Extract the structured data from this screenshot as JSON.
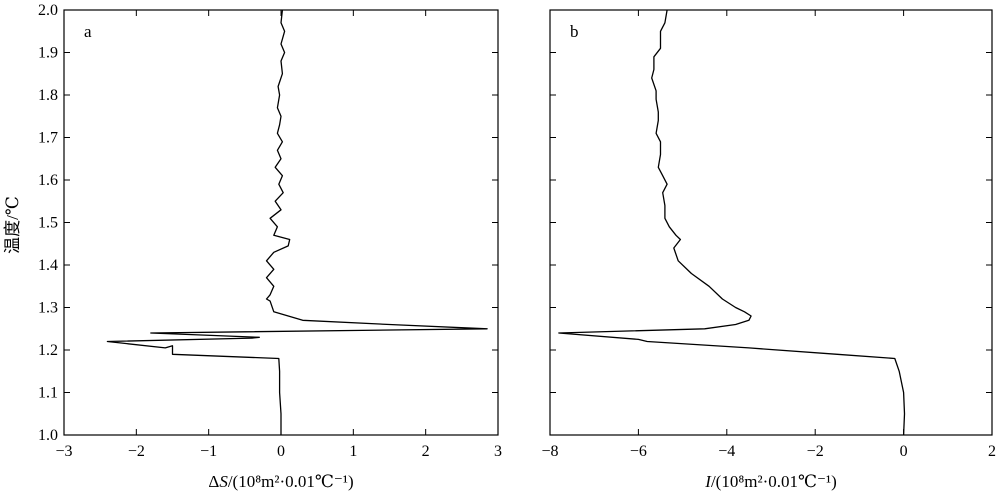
{
  "y_axis_label": "温度/℃",
  "chart_data": [
    {
      "type": "line",
      "panel_label": "a",
      "xlabel_prefix": "Δ",
      "xlabel_var": "S",
      "xlabel_unit": "/(10⁸m²·0.01℃⁻¹)",
      "xlim": [
        -3,
        3
      ],
      "ylim": [
        1.0,
        2.0
      ],
      "xticks": [
        "−3",
        "−2",
        "−1",
        "0",
        "1",
        "2",
        "3"
      ],
      "xtick_values": [
        -3,
        -2,
        -1,
        0,
        1,
        2,
        3
      ],
      "yticks": [
        "1.0",
        "1.1",
        "1.2",
        "1.3",
        "1.4",
        "1.5",
        "1.6",
        "1.7",
        "1.8",
        "1.9",
        "2.0"
      ],
      "ytick_values": [
        1.0,
        1.1,
        1.2,
        1.3,
        1.4,
        1.5,
        1.6,
        1.7,
        1.8,
        1.9,
        2.0
      ],
      "grid": false,
      "series": [
        {
          "points": [
            [
              0.0,
              1.0
            ],
            [
              0.0,
              1.05
            ],
            [
              -0.02,
              1.1
            ],
            [
              -0.02,
              1.15
            ],
            [
              -0.03,
              1.18
            ],
            [
              -1.5,
              1.19
            ],
            [
              -1.5,
              1.21
            ],
            [
              -1.6,
              1.205
            ],
            [
              -2.4,
              1.22
            ],
            [
              -0.4,
              1.228
            ],
            [
              -0.3,
              1.23
            ],
            [
              -1.8,
              1.24
            ],
            [
              2.85,
              1.25
            ],
            [
              1.5,
              1.26
            ],
            [
              0.3,
              1.27
            ],
            [
              -0.1,
              1.29
            ],
            [
              -0.15,
              1.315
            ],
            [
              -0.2,
              1.32
            ],
            [
              -0.15,
              1.33
            ],
            [
              -0.1,
              1.35
            ],
            [
              -0.2,
              1.37
            ],
            [
              -0.1,
              1.39
            ],
            [
              -0.2,
              1.41
            ],
            [
              -0.1,
              1.43
            ],
            [
              0.1,
              1.445
            ],
            [
              0.12,
              1.46
            ],
            [
              -0.1,
              1.47
            ],
            [
              -0.05,
              1.49
            ],
            [
              -0.15,
              1.51
            ],
            [
              0.0,
              1.53
            ],
            [
              -0.08,
              1.55
            ],
            [
              0.03,
              1.57
            ],
            [
              -0.03,
              1.59
            ],
            [
              0.02,
              1.61
            ],
            [
              -0.08,
              1.63
            ],
            [
              0.0,
              1.65
            ],
            [
              -0.05,
              1.67
            ],
            [
              0.02,
              1.69
            ],
            [
              -0.05,
              1.71
            ],
            [
              -0.02,
              1.73
            ],
            [
              0.0,
              1.75
            ],
            [
              -0.05,
              1.77
            ],
            [
              -0.02,
              1.8
            ],
            [
              -0.04,
              1.82
            ],
            [
              0.02,
              1.85
            ],
            [
              0.0,
              1.88
            ],
            [
              0.05,
              1.9
            ],
            [
              0.0,
              1.92
            ],
            [
              0.05,
              1.95
            ],
            [
              0.0,
              1.97
            ],
            [
              0.02,
              2.0
            ]
          ]
        }
      ]
    },
    {
      "type": "line",
      "panel_label": "b",
      "xlabel_prefix": "",
      "xlabel_var": "I",
      "xlabel_unit": "/(10⁸m²·0.01℃⁻¹)",
      "xlim": [
        -8,
        2
      ],
      "ylim": [
        1.0,
        2.0
      ],
      "xticks": [
        "−8",
        "−6",
        "−4",
        "−2",
        "0",
        "2"
      ],
      "xtick_values": [
        -8,
        -6,
        -4,
        -2,
        0,
        2
      ],
      "yticks": [],
      "ytick_values": [
        1.0,
        1.1,
        1.2,
        1.3,
        1.4,
        1.5,
        1.6,
        1.7,
        1.8,
        1.9,
        2.0
      ],
      "grid": false,
      "series": [
        {
          "points": [
            [
              0.0,
              1.0
            ],
            [
              0.02,
              1.05
            ],
            [
              0.0,
              1.1
            ],
            [
              -0.1,
              1.15
            ],
            [
              -0.2,
              1.18
            ],
            [
              -1.5,
              1.19
            ],
            [
              -3.5,
              1.205
            ],
            [
              -5.8,
              1.22
            ],
            [
              -6.0,
              1.225
            ],
            [
              -7.8,
              1.24
            ],
            [
              -4.5,
              1.25
            ],
            [
              -3.8,
              1.26
            ],
            [
              -3.5,
              1.27
            ],
            [
              -3.45,
              1.28
            ],
            [
              -3.6,
              1.29
            ],
            [
              -3.8,
              1.3
            ],
            [
              -4.1,
              1.32
            ],
            [
              -4.4,
              1.35
            ],
            [
              -4.8,
              1.38
            ],
            [
              -5.1,
              1.41
            ],
            [
              -5.2,
              1.44
            ],
            [
              -5.05,
              1.46
            ],
            [
              -5.15,
              1.47
            ],
            [
              -5.3,
              1.49
            ],
            [
              -5.4,
              1.51
            ],
            [
              -5.4,
              1.54
            ],
            [
              -5.45,
              1.57
            ],
            [
              -5.35,
              1.59
            ],
            [
              -5.45,
              1.61
            ],
            [
              -5.55,
              1.63
            ],
            [
              -5.5,
              1.66
            ],
            [
              -5.5,
              1.69
            ],
            [
              -5.6,
              1.71
            ],
            [
              -5.55,
              1.74
            ],
            [
              -5.55,
              1.76
            ],
            [
              -5.6,
              1.79
            ],
            [
              -5.6,
              1.81
            ],
            [
              -5.7,
              1.84
            ],
            [
              -5.65,
              1.86
            ],
            [
              -5.65,
              1.89
            ],
            [
              -5.5,
              1.91
            ],
            [
              -5.5,
              1.93
            ],
            [
              -5.5,
              1.95
            ],
            [
              -5.4,
              1.97
            ],
            [
              -5.35,
              2.0
            ]
          ]
        }
      ]
    }
  ]
}
